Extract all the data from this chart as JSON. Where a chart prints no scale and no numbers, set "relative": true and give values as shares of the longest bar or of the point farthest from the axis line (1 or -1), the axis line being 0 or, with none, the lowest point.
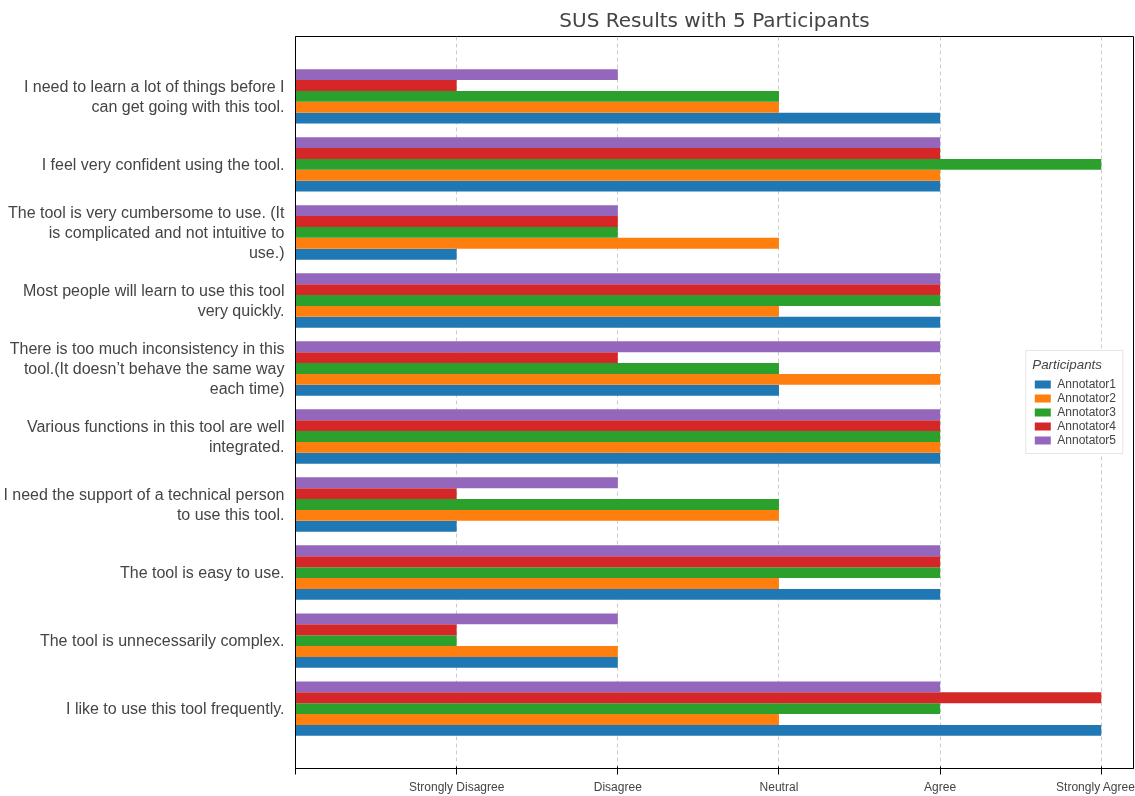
{
  "chart_data": {
    "type": "bar",
    "orientation": "horizontal",
    "relative": true,
    "title": "SUS Results with 5 Participants",
    "legend_title": "Participants",
    "legend": "right",
    "grid": "x",
    "categories": [
      "I need to learn a lot of things before I can get going with this tool.",
      "I feel very confident using the tool.",
      "The tool is very cumbersome to use. (It is complicated and not intuitive to use.)",
      "Most people will learn to use this tool very quickly.",
      "There is too much inconsistency in this tool.(It doesn’t behave the same way each time)",
      "Various functions in this tool are well integrated.",
      "I need the support of a technical person to use this tool.",
      "The tool is easy to use.",
      "The tool is unnecessarily complex.",
      "I like to use this tool frequently."
    ],
    "annotations": [
      "Strongly Disagree",
      "Disagree",
      "Neutral",
      "Agree",
      "Strongly Agree"
    ],
    "series": [
      {
        "name": "Annotator1",
        "color": "#1f77b4",
        "values": [
          0.8,
          0.8,
          0.2,
          0.8,
          0.6,
          0.8,
          0.2,
          0.8,
          0.4,
          1
        ]
      },
      {
        "name": "Annotator2",
        "color": "#ff7f0e",
        "values": [
          0.6,
          0.8,
          0.6,
          0.6,
          0.8,
          0.8,
          0.6,
          0.6,
          0.4,
          0.6
        ]
      },
      {
        "name": "Annotator3",
        "color": "#2ca02c",
        "values": [
          0.6,
          1,
          0.4,
          0.8,
          0.6,
          0.8,
          0.6,
          0.8,
          0.2,
          0.8
        ]
      },
      {
        "name": "Annotator4",
        "color": "#d62728",
        "values": [
          0.2,
          0.8,
          0.4,
          0.8,
          0.4,
          0.8,
          0.2,
          0.8,
          0.2,
          1
        ]
      },
      {
        "name": "Annotator5",
        "color": "#9467bd",
        "values": [
          0.4,
          0.8,
          0.4,
          0.8,
          0.8,
          0.8,
          0.4,
          0.8,
          0.4,
          0.8
        ]
      }
    ]
  }
}
